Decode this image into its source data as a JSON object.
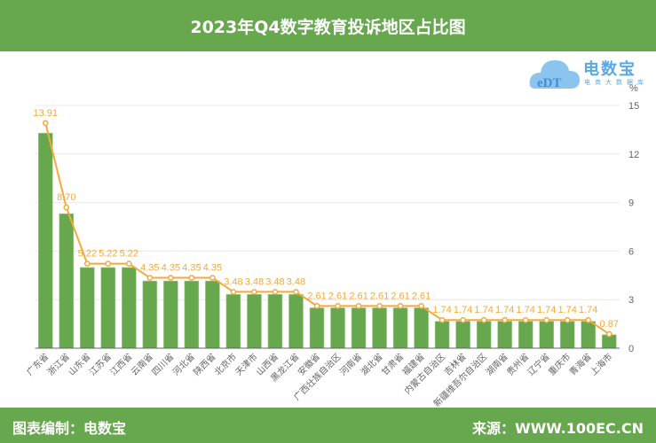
{
  "header": {
    "title": "2023年Q4数字教育投诉地区占比图"
  },
  "footer": {
    "left": "图表编制：电数宝",
    "right": "来源：WWW.100EC.CN"
  },
  "logo": {
    "name": "电数宝",
    "subtitle": "电商大数据库",
    "mark": "eDT"
  },
  "colors": {
    "bar": "#67a74d",
    "line": "#f5a93a",
    "header": "#67a74d"
  },
  "chart_data": {
    "type": "bar+line",
    "title": "2023年Q4数字教育投诉地区占比图",
    "yunit": "%",
    "ylim": [
      0,
      15
    ],
    "yticks": [
      0,
      3,
      6,
      9,
      12,
      15
    ],
    "grid": true,
    "categories": [
      "广东省",
      "浙江省",
      "山东省",
      "江苏省",
      "江西省",
      "云南省",
      "四川省",
      "河北省",
      "陕西省",
      "北京市",
      "天津市",
      "山西省",
      "黑龙江省",
      "安徽省",
      "广西壮族自治区",
      "河南省",
      "湖北省",
      "甘肃省",
      "福建省",
      "内蒙古自治区",
      "吉林省",
      "新疆维吾尔自治区",
      "湖南省",
      "贵州省",
      "辽宁省",
      "重庆市",
      "青海省",
      "上海市"
    ],
    "values": [
      13.91,
      8.7,
      5.22,
      5.22,
      5.22,
      4.35,
      4.35,
      4.35,
      4.35,
      3.48,
      3.48,
      3.48,
      3.48,
      2.61,
      2.61,
      2.61,
      2.61,
      2.61,
      2.61,
      1.74,
      1.74,
      1.74,
      1.74,
      1.74,
      1.74,
      1.74,
      1.74,
      0.87
    ],
    "labels": [
      "13.91",
      "8.70",
      "5.22",
      "5.22",
      "5.22",
      "4.35",
      "4.35",
      "4.35",
      "4.35",
      "3.48",
      "3.48",
      "3.48",
      "3.48",
      "2.61",
      "2.61",
      "2.61",
      "2.61",
      "2.61",
      "2.61",
      "1.74",
      "1.74",
      "1.74",
      "1.74",
      "1.74",
      "1.74",
      "1.74",
      "1.74",
      "0.87"
    ]
  }
}
